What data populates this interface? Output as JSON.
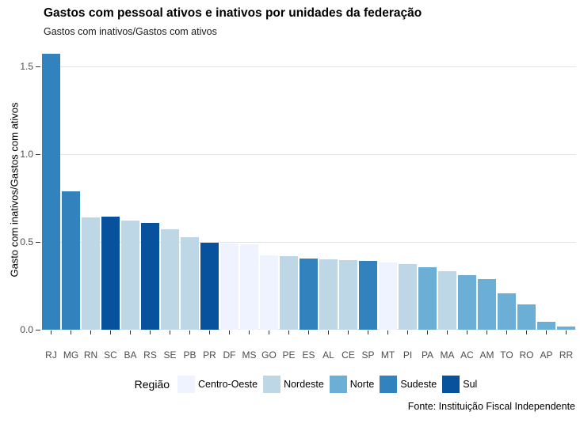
{
  "title": "Gastos com pessoal ativos e inativos por unidades da federação",
  "subtitle": "Gastos com inativos/Gastos com ativos",
  "footer": "Fonte: Instituição Fiscal Independente",
  "y_axis_title": "Gasto com inativos/Gastos com ativos",
  "legend": {
    "title": "Região",
    "items": [
      {
        "label": "Centro-Oeste",
        "color": "#EFF3FF"
      },
      {
        "label": "Nordeste",
        "color": "#BDD7E7"
      },
      {
        "label": "Norte",
        "color": "#6BAED6"
      },
      {
        "label": "Sudeste",
        "color": "#3182BD"
      },
      {
        "label": "Sul",
        "color": "#08519C"
      }
    ]
  },
  "chart_data": {
    "type": "bar",
    "title": "Gastos com pessoal ativos e inativos por unidades da federação",
    "subtitle": "Gastos com inativos/Gastos com ativos",
    "xlabel": "",
    "ylabel": "Gasto com inativos/Gastos com ativos",
    "ylim": [
      0,
      1.6
    ],
    "yticks": [
      0.0,
      0.5,
      1.0,
      1.5
    ],
    "ytick_labels": [
      "0.0",
      "0.5",
      "1.0",
      "1.5"
    ],
    "grid": "horizontal-major",
    "legend_position": "bottom",
    "legend_title": "Região",
    "region_colors": {
      "Centro-Oeste": "#EFF3FF",
      "Nordeste": "#BDD7E7",
      "Norte": "#6BAED6",
      "Sudeste": "#3182BD",
      "Sul": "#08519C"
    },
    "categories": [
      "RJ",
      "MG",
      "RN",
      "SC",
      "BA",
      "RS",
      "SE",
      "PB",
      "PR",
      "DF",
      "MS",
      "GO",
      "PE",
      "ES",
      "AL",
      "CE",
      "SP",
      "MT",
      "PI",
      "PA",
      "MA",
      "AC",
      "AM",
      "TO",
      "RO",
      "AP",
      "RR"
    ],
    "values": [
      1.57,
      0.79,
      0.64,
      0.645,
      0.62,
      0.61,
      0.57,
      0.525,
      0.495,
      0.49,
      0.485,
      0.425,
      0.42,
      0.405,
      0.403,
      0.398,
      0.393,
      0.383,
      0.375,
      0.355,
      0.335,
      0.31,
      0.29,
      0.205,
      0.145,
      0.045,
      0.02
    ],
    "regions": [
      "Sudeste",
      "Sudeste",
      "Nordeste",
      "Sul",
      "Nordeste",
      "Sul",
      "Nordeste",
      "Nordeste",
      "Sul",
      "Centro-Oeste",
      "Centro-Oeste",
      "Centro-Oeste",
      "Nordeste",
      "Sudeste",
      "Nordeste",
      "Nordeste",
      "Sudeste",
      "Centro-Oeste",
      "Nordeste",
      "Norte",
      "Nordeste",
      "Norte",
      "Norte",
      "Norte",
      "Norte",
      "Norte",
      "Norte"
    ]
  }
}
